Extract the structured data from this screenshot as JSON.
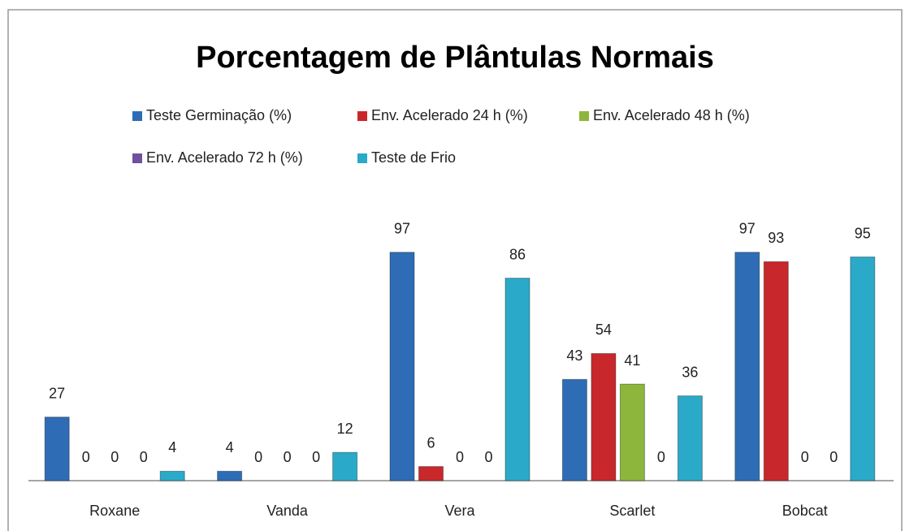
{
  "chart_data": {
    "type": "bar",
    "title": "Porcentagem de Plântulas Normais",
    "categories": [
      "Roxane",
      "Vanda",
      "Vera",
      "Scarlet",
      "Bobcat"
    ],
    "series": [
      {
        "name": "Teste Germinação (%)",
        "color": "#2e6db5",
        "values": [
          27,
          4,
          97,
          43,
          97
        ]
      },
      {
        "name": "Env. Acelerado 24 h (%)",
        "color": "#c8282b",
        "values": [
          0,
          0,
          6,
          54,
          93
        ]
      },
      {
        "name": "Env. Acelerado 48 h (%)",
        "color": "#8db63c",
        "values": [
          0,
          0,
          0,
          41,
          0
        ]
      },
      {
        "name": "Env. Acelerado 72 h (%)",
        "color": "#7050a0",
        "values": [
          0,
          0,
          0,
          0,
          0
        ]
      },
      {
        "name": "Teste de Frio",
        "color": "#2aaac8",
        "values": [
          4,
          12,
          86,
          36,
          95
        ]
      }
    ],
    "legend": "top"
  }
}
